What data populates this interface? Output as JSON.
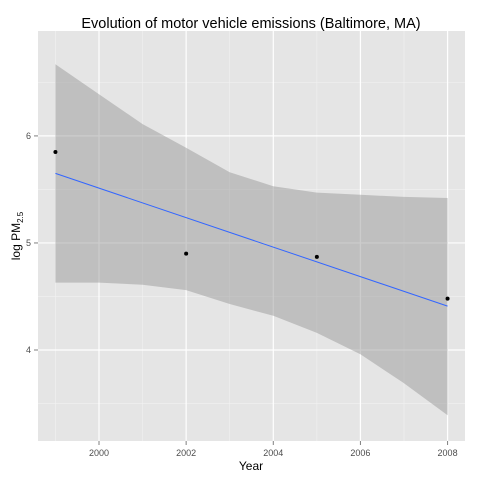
{
  "chart_data": {
    "type": "scatter",
    "title": "Evolution of motor vehicle emissions (Baltimore, MA)",
    "xlabel": "Year",
    "ylabel": "log PM",
    "ylabel_subscript": "2.5",
    "xlim": [
      1998.6,
      2008.4
    ],
    "ylim": [
      3.15,
      6.98
    ],
    "x_ticks": [
      2000,
      2002,
      2004,
      2006,
      2008
    ],
    "y_ticks": [
      4,
      5,
      6
    ],
    "grid": true,
    "background": "#e5e5e5",
    "points": {
      "x": [
        1999,
        2002,
        2005,
        2008
      ],
      "y": [
        5.85,
        4.9,
        4.87,
        4.48
      ]
    },
    "fit": {
      "x": [
        1999,
        2008
      ],
      "y": [
        5.65,
        4.41
      ],
      "color": "#3366ff"
    },
    "confidence_band": {
      "x": [
        1999,
        2000,
        2001,
        2002,
        2003,
        2004,
        2005,
        2006,
        2007,
        2008
      ],
      "upper": [
        6.67,
        6.39,
        6.11,
        5.89,
        5.66,
        5.53,
        5.47,
        5.45,
        5.43,
        5.42
      ],
      "lower": [
        4.63,
        4.63,
        4.61,
        4.56,
        4.43,
        4.32,
        4.16,
        3.96,
        3.69,
        3.39
      ],
      "color": "#999999"
    }
  }
}
